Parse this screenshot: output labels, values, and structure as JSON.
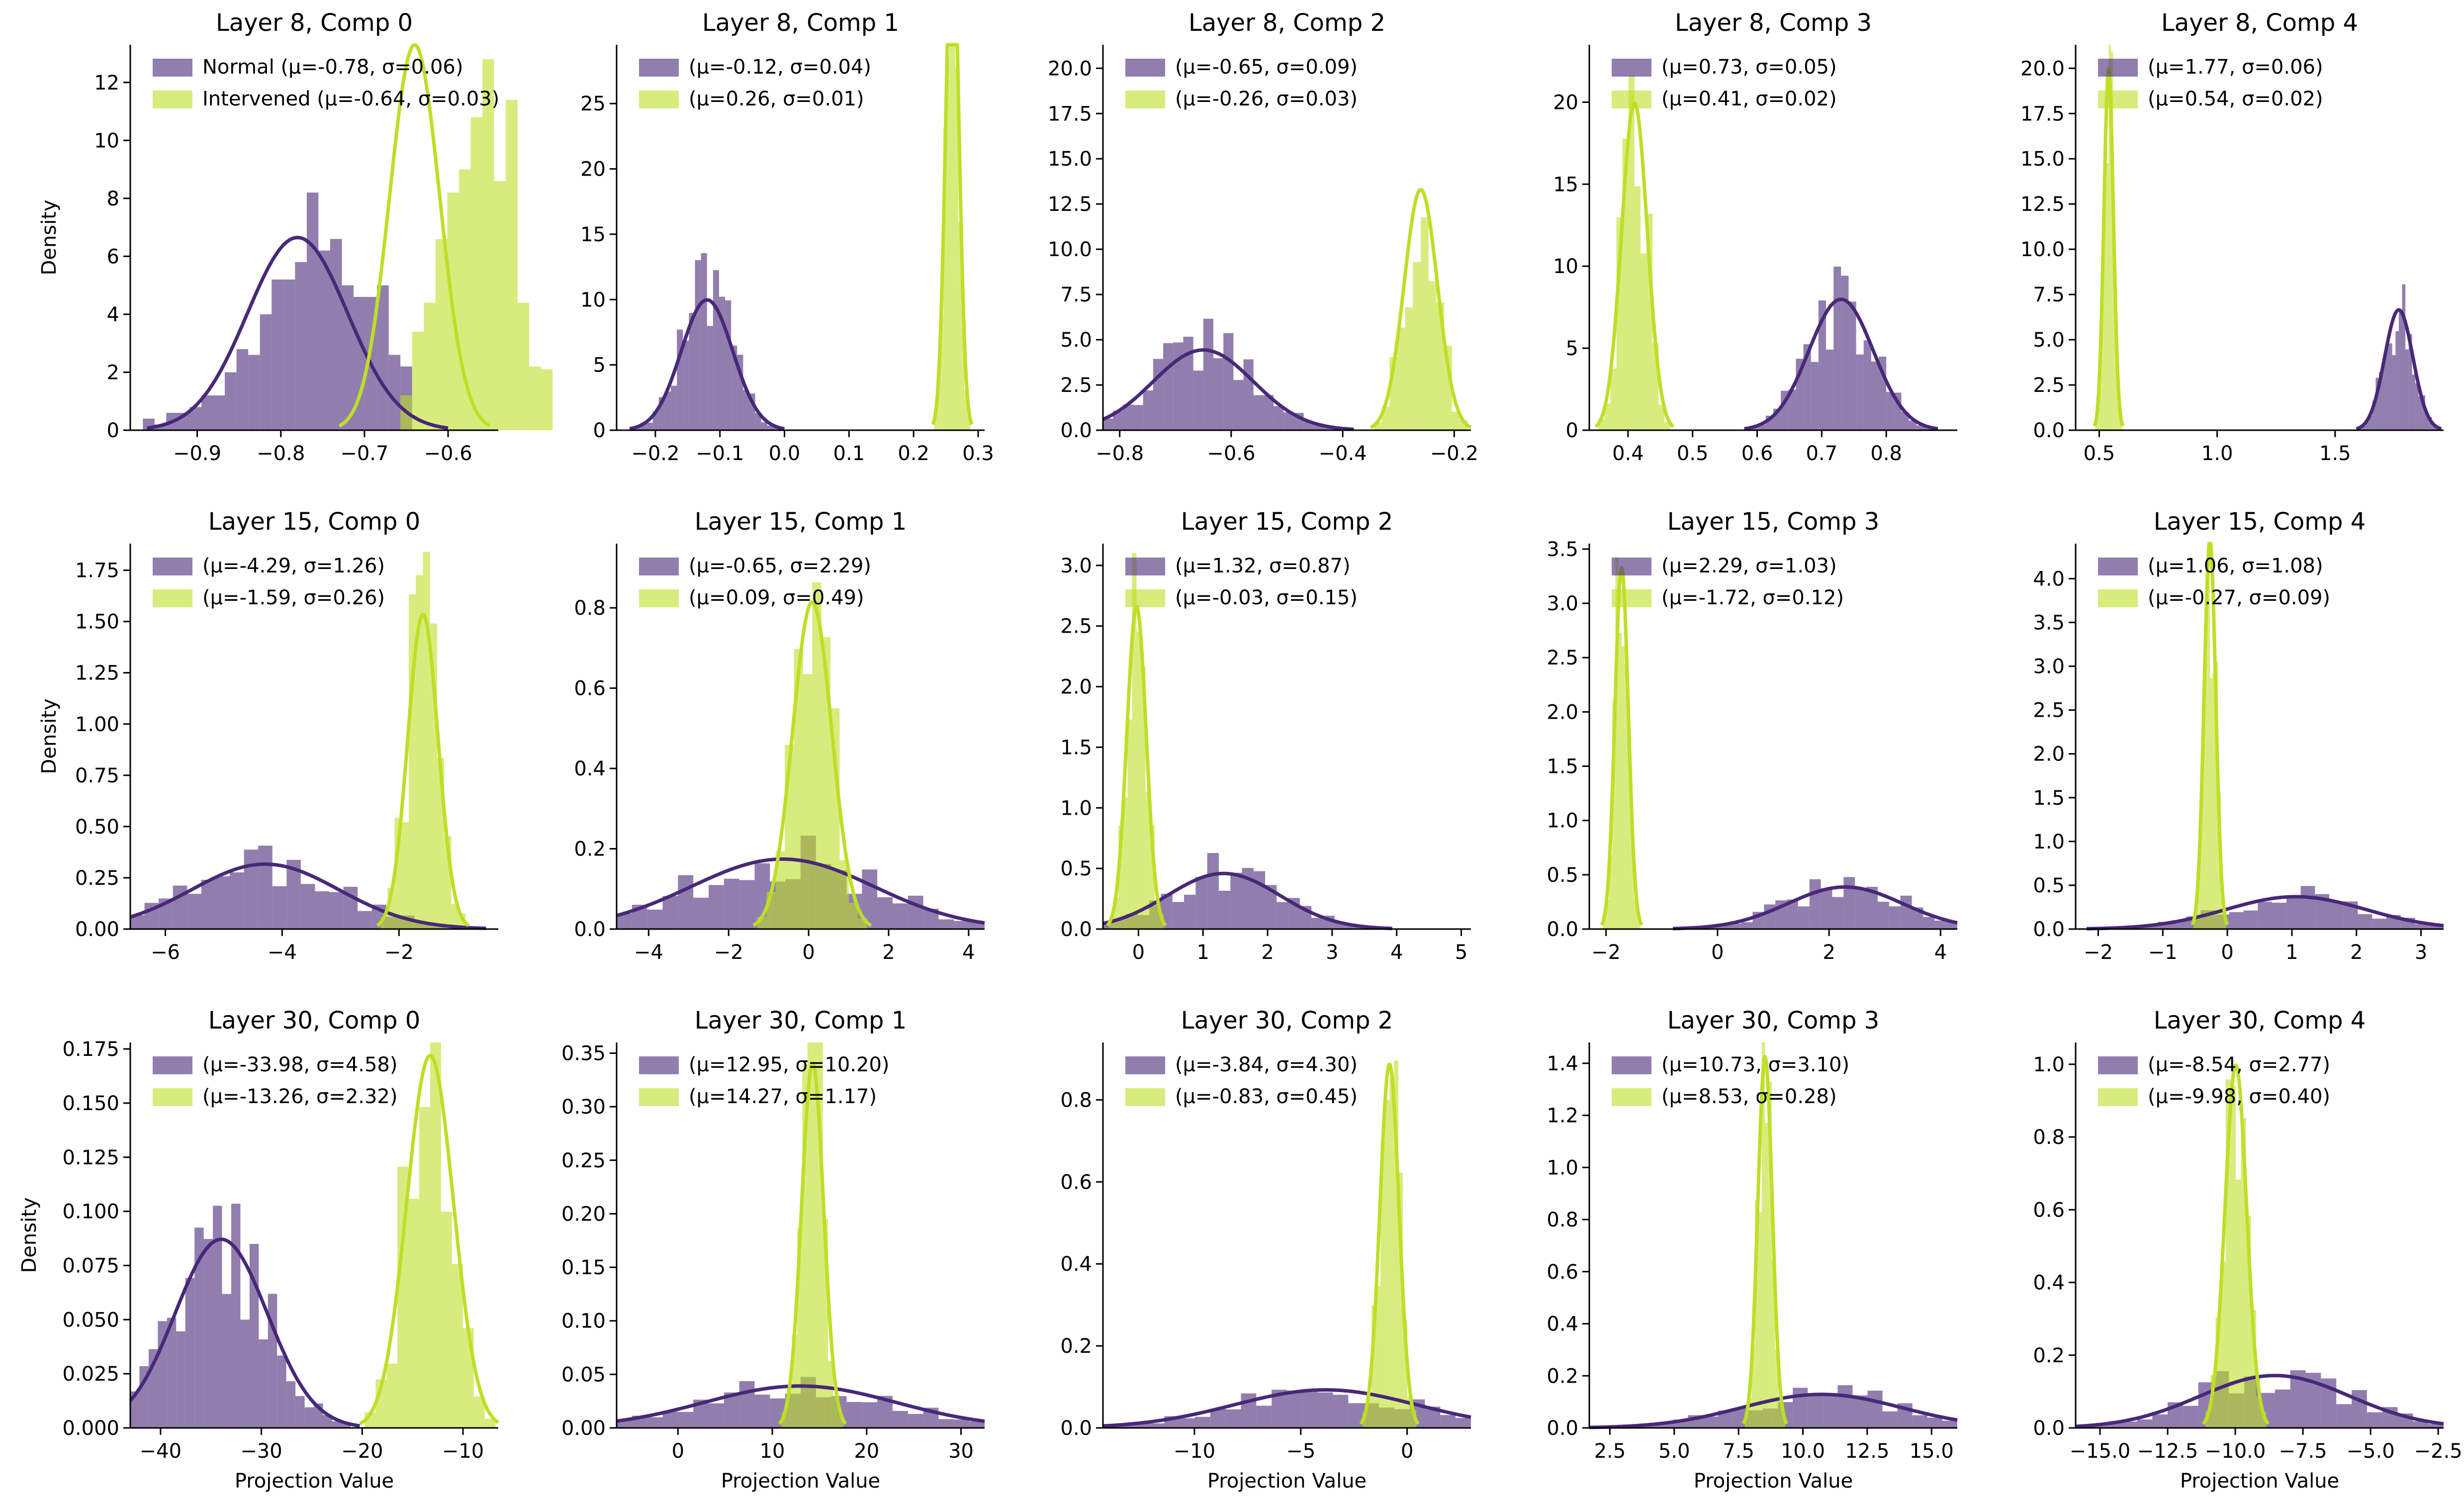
{
  "colors": {
    "normal": "#482878",
    "intervened": "#bddf26",
    "axis": "#000000"
  },
  "chart_data": [
    {
      "type": "histogram",
      "title": "Layer 8, Comp 0",
      "xlabel": "",
      "ylabel": "Density",
      "xlim": [
        -0.98,
        -0.54
      ],
      "xticks": [
        -0.9,
        -0.8,
        -0.7,
        -0.6
      ],
      "xtick_labels": [
        "−0.9",
        "−0.8",
        "−0.7",
        "−0.6"
      ],
      "ylim": [
        0,
        13.3
      ],
      "yticks": [
        0,
        2,
        4,
        6,
        8,
        10,
        12
      ],
      "ytick_labels": [
        "0",
        "2",
        "4",
        "6",
        "8",
        "10",
        "12"
      ],
      "bin_range": [
        -0.965,
        -0.545
      ],
      "series": [
        {
          "name": "Normal",
          "mean": -0.78,
          "std": 0.06,
          "legend": "Normal (μ=-0.78, σ=0.06)",
          "hist": [
            0.4,
            0.2,
            0.6,
            0.6,
            0.8,
            1.2,
            1.2,
            2.0,
            2.8,
            2.6,
            4.0,
            5.2,
            5.2,
            5.8,
            8.2,
            6.2,
            6.6,
            5.0,
            4.6,
            4.6,
            5.0,
            2.6,
            2.2,
            0,
            0,
            0,
            0,
            0,
            0,
            0
          ]
        },
        {
          "name": "Intervened",
          "mean": -0.64,
          "std": 0.03,
          "legend": "Intervened (μ=-0.64, σ=0.03)",
          "hist": [
            0,
            0,
            0,
            0,
            0,
            0,
            0,
            0,
            0,
            0,
            0,
            0,
            0,
            0,
            0,
            0,
            0,
            0,
            0,
            0,
            0,
            0,
            1.2,
            3.4,
            4.4,
            6.6,
            8.2,
            9.0,
            10.8,
            12.8,
            8.6,
            11.4,
            4.4,
            2.2,
            2.1
          ]
        }
      ]
    },
    {
      "type": "histogram",
      "title": "Layer 8, Comp 1",
      "xlabel": "",
      "ylabel": "",
      "xlim": [
        -0.26,
        0.31
      ],
      "xticks": [
        -0.2,
        -0.1,
        0.0,
        0.1,
        0.2,
        0.3
      ],
      "xtick_labels": [
        "−0.2",
        "−0.1",
        "0.0",
        "0.1",
        "0.2",
        "0.3"
      ],
      "ylim": [
        0,
        29.5
      ],
      "yticks": [
        0,
        5,
        10,
        15,
        20,
        25
      ],
      "ytick_labels": [
        "0",
        "5",
        "10",
        "15",
        "20",
        "25"
      ],
      "series": [
        {
          "name": "Normal",
          "mean": -0.12,
          "std": 0.04,
          "legend": "(μ=-0.12, σ=0.04)"
        },
        {
          "name": "Intervened",
          "mean": 0.26,
          "std": 0.01,
          "legend": "(μ=0.26, σ=0.01)"
        }
      ]
    },
    {
      "type": "histogram",
      "title": "Layer 8, Comp 2",
      "xlabel": "",
      "ylabel": "",
      "xlim": [
        -0.83,
        -0.17
      ],
      "xticks": [
        -0.8,
        -0.6,
        -0.4,
        -0.2
      ],
      "xtick_labels": [
        "−0.8",
        "−0.6",
        "−0.4",
        "−0.2"
      ],
      "ylim": [
        0,
        21.3
      ],
      "yticks": [
        0,
        2.5,
        5,
        7.5,
        10,
        12.5,
        15,
        17.5,
        20
      ],
      "ytick_labels": [
        "0.0",
        "2.5",
        "5.0",
        "7.5",
        "10.0",
        "12.5",
        "15.0",
        "17.5",
        "20.0"
      ],
      "series": [
        {
          "name": "Normal",
          "mean": -0.65,
          "std": 0.09,
          "legend": "(μ=-0.65, σ=0.09)"
        },
        {
          "name": "Intervened",
          "mean": -0.26,
          "std": 0.03,
          "legend": "(μ=-0.26, σ=0.03)"
        }
      ]
    },
    {
      "type": "histogram",
      "title": "Layer 8, Comp 3",
      "xlabel": "",
      "ylabel": "",
      "xlim": [
        0.34,
        0.91
      ],
      "xticks": [
        0.4,
        0.5,
        0.6,
        0.7,
        0.8
      ],
      "xtick_labels": [
        "0.4",
        "0.5",
        "0.6",
        "0.7",
        "0.8"
      ],
      "ylim": [
        0,
        23.5
      ],
      "yticks": [
        0,
        5,
        10,
        15,
        20
      ],
      "ytick_labels": [
        "0",
        "5",
        "10",
        "15",
        "20"
      ],
      "series": [
        {
          "name": "Normal",
          "mean": 0.73,
          "std": 0.05,
          "legend": "(μ=0.73, σ=0.05)"
        },
        {
          "name": "Intervened",
          "mean": 0.41,
          "std": 0.02,
          "legend": "(μ=0.41, σ=0.02)"
        }
      ]
    },
    {
      "type": "histogram",
      "title": "Layer 8, Comp 4",
      "xlabel": "",
      "ylabel": "",
      "xlim": [
        0.4,
        1.96
      ],
      "xticks": [
        0.5,
        1.0,
        1.5
      ],
      "xtick_labels": [
        "0.5",
        "1.0",
        "1.5"
      ],
      "ylim": [
        0,
        21.3
      ],
      "yticks": [
        0,
        2.5,
        5,
        7.5,
        10,
        12.5,
        15,
        17.5,
        20
      ],
      "ytick_labels": [
        "0.0",
        "2.5",
        "5.0",
        "7.5",
        "10.0",
        "12.5",
        "15.0",
        "17.5",
        "20.0"
      ],
      "series": [
        {
          "name": "Normal",
          "mean": 1.77,
          "std": 0.06,
          "legend": "(μ=1.77, σ=0.06)"
        },
        {
          "name": "Intervened",
          "mean": 0.54,
          "std": 0.02,
          "legend": "(μ=0.54, σ=0.02)"
        }
      ]
    },
    {
      "type": "histogram",
      "title": "Layer 15, Comp 0",
      "xlabel": "",
      "ylabel": "Density",
      "xlim": [
        -6.6,
        -0.3
      ],
      "xticks": [
        -6,
        -4,
        -2
      ],
      "xtick_labels": [
        "−6",
        "−4",
        "−2"
      ],
      "ylim": [
        0,
        1.88
      ],
      "yticks": [
        0,
        0.25,
        0.5,
        0.75,
        1.0,
        1.25,
        1.5,
        1.75
      ],
      "ytick_labels": [
        "0.00",
        "0.25",
        "0.50",
        "0.75",
        "1.00",
        "1.25",
        "1.50",
        "1.75"
      ],
      "series": [
        {
          "name": "Normal",
          "mean": -4.29,
          "std": 1.26,
          "legend": "(μ=-4.29, σ=1.26)"
        },
        {
          "name": "Intervened",
          "mean": -1.59,
          "std": 0.26,
          "legend": "(μ=-1.59, σ=0.26)"
        }
      ]
    },
    {
      "type": "histogram",
      "title": "Layer 15, Comp 1",
      "xlabel": "",
      "ylabel": "",
      "xlim": [
        -4.8,
        4.4
      ],
      "xticks": [
        -4,
        -2,
        0,
        2,
        4
      ],
      "xtick_labels": [
        "−4",
        "−2",
        "0",
        "2",
        "4"
      ],
      "ylim": [
        0,
        0.96
      ],
      "yticks": [
        0,
        0.2,
        0.4,
        0.6,
        0.8
      ],
      "ytick_labels": [
        "0.0",
        "0.2",
        "0.4",
        "0.6",
        "0.8"
      ],
      "series": [
        {
          "name": "Normal",
          "mean": -0.65,
          "std": 2.29,
          "legend": "(μ=-0.65, σ=2.29)"
        },
        {
          "name": "Intervened",
          "mean": 0.09,
          "std": 0.49,
          "legend": "(μ=0.09, σ=0.49)"
        }
      ]
    },
    {
      "type": "histogram",
      "title": "Layer 15, Comp 2",
      "xlabel": "",
      "ylabel": "",
      "xlim": [
        -0.55,
        5.15
      ],
      "xticks": [
        0,
        1,
        2,
        3,
        4,
        5
      ],
      "xtick_labels": [
        "0",
        "1",
        "2",
        "3",
        "4",
        "5"
      ],
      "ylim": [
        0,
        3.18
      ],
      "yticks": [
        0,
        0.5,
        1.0,
        1.5,
        2.0,
        2.5,
        3.0
      ],
      "ytick_labels": [
        "0.0",
        "0.5",
        "1.0",
        "1.5",
        "2.0",
        "2.5",
        "3.0"
      ],
      "series": [
        {
          "name": "Normal",
          "mean": 1.32,
          "std": 0.87,
          "legend": "(μ=1.32, σ=0.87)"
        },
        {
          "name": "Intervened",
          "mean": -0.03,
          "std": 0.15,
          "legend": "(μ=-0.03, σ=0.15)"
        }
      ]
    },
    {
      "type": "histogram",
      "title": "Layer 15, Comp 3",
      "xlabel": "",
      "ylabel": "",
      "xlim": [
        -2.3,
        4.3
      ],
      "xticks": [
        -2,
        0,
        2,
        4
      ],
      "xtick_labels": [
        "−2",
        "0",
        "2",
        "4"
      ],
      "ylim": [
        0,
        3.55
      ],
      "yticks": [
        0,
        0.5,
        1.0,
        1.5,
        2.0,
        2.5,
        3.0,
        3.5
      ],
      "ytick_labels": [
        "0.0",
        "0.5",
        "1.0",
        "1.5",
        "2.0",
        "2.5",
        "3.0",
        "3.5"
      ],
      "series": [
        {
          "name": "Normal",
          "mean": 2.29,
          "std": 1.03,
          "legend": "(μ=2.29, σ=1.03)"
        },
        {
          "name": "Intervened",
          "mean": -1.72,
          "std": 0.12,
          "legend": "(μ=-1.72, σ=0.12)"
        }
      ]
    },
    {
      "type": "histogram",
      "title": "Layer 15, Comp 4",
      "xlabel": "",
      "ylabel": "",
      "xlim": [
        -2.35,
        3.35
      ],
      "xticks": [
        -2,
        -1,
        0,
        1,
        2,
        3
      ],
      "xtick_labels": [
        "−2",
        "−1",
        "0",
        "1",
        "2",
        "3"
      ],
      "ylim": [
        0,
        4.4
      ],
      "yticks": [
        0,
        0.5,
        1.0,
        1.5,
        2.0,
        2.5,
        3.0,
        3.5,
        4.0
      ],
      "ytick_labels": [
        "0.0",
        "0.5",
        "1.0",
        "1.5",
        "2.0",
        "2.5",
        "3.0",
        "3.5",
        "4.0"
      ],
      "series": [
        {
          "name": "Normal",
          "mean": 1.06,
          "std": 1.08,
          "legend": "(μ=1.06, σ=1.08)"
        },
        {
          "name": "Intervened",
          "mean": -0.27,
          "std": 0.09,
          "legend": "(μ=-0.27, σ=0.09)"
        }
      ]
    },
    {
      "type": "histogram",
      "title": "Layer 30, Comp 0",
      "xlabel": "Projection Value",
      "ylabel": "Density",
      "xlim": [
        -43,
        -6.5
      ],
      "xticks": [
        -40,
        -30,
        -20,
        -10
      ],
      "xtick_labels": [
        "−40",
        "−30",
        "−20",
        "−10"
      ],
      "ylim": [
        0,
        0.178
      ],
      "yticks": [
        0,
        0.025,
        0.05,
        0.075,
        0.1,
        0.125,
        0.15,
        0.175
      ],
      "ytick_labels": [
        "0.000",
        "0.025",
        "0.050",
        "0.075",
        "0.100",
        "0.125",
        "0.150",
        "0.175"
      ],
      "series": [
        {
          "name": "Normal",
          "mean": -33.98,
          "std": 4.58,
          "legend": "(μ=-33.98, σ=4.58)"
        },
        {
          "name": "Intervened",
          "mean": -13.26,
          "std": 2.32,
          "legend": "(μ=-13.26, σ=2.32)"
        }
      ]
    },
    {
      "type": "histogram",
      "title": "Layer 30, Comp 1",
      "xlabel": "Projection Value",
      "ylabel": "",
      "xlim": [
        -6.5,
        32.5
      ],
      "xticks": [
        0,
        10,
        20,
        30
      ],
      "xtick_labels": [
        "0",
        "10",
        "20",
        "30"
      ],
      "ylim": [
        0,
        0.36
      ],
      "yticks": [
        0,
        0.05,
        0.1,
        0.15,
        0.2,
        0.25,
        0.3,
        0.35
      ],
      "ytick_labels": [
        "0.00",
        "0.05",
        "0.10",
        "0.15",
        "0.20",
        "0.25",
        "0.30",
        "0.35"
      ],
      "series": [
        {
          "name": "Normal",
          "mean": 12.95,
          "std": 10.2,
          "legend": "(μ=12.95, σ=10.20)"
        },
        {
          "name": "Intervened",
          "mean": 14.27,
          "std": 1.17,
          "legend": "(μ=14.27, σ=1.17)"
        }
      ]
    },
    {
      "type": "histogram",
      "title": "Layer 30, Comp 2",
      "xlabel": "Projection Value",
      "ylabel": "",
      "xlim": [
        -14.3,
        3.0
      ],
      "xticks": [
        -10,
        -5,
        0
      ],
      "xtick_labels": [
        "−10",
        "−5",
        "0"
      ],
      "ylim": [
        0,
        0.94
      ],
      "yticks": [
        0,
        0.2,
        0.4,
        0.6,
        0.8
      ],
      "ytick_labels": [
        "0.0",
        "0.2",
        "0.4",
        "0.6",
        "0.8"
      ],
      "series": [
        {
          "name": "Normal",
          "mean": -3.84,
          "std": 4.3,
          "legend": "(μ=-3.84, σ=4.30)"
        },
        {
          "name": "Intervened",
          "mean": -0.83,
          "std": 0.45,
          "legend": "(μ=-0.83, σ=0.45)"
        }
      ]
    },
    {
      "type": "histogram",
      "title": "Layer 30, Comp 3",
      "xlabel": "Projection Value",
      "ylabel": "",
      "xlim": [
        1.7,
        16.0
      ],
      "xticks": [
        2.5,
        5.0,
        7.5,
        10.0,
        12.5,
        15.0
      ],
      "xtick_labels": [
        "2.5",
        "5.0",
        "7.5",
        "10.0",
        "12.5",
        "15.0"
      ],
      "ylim": [
        0,
        1.48
      ],
      "yticks": [
        0,
        0.2,
        0.4,
        0.6,
        0.8,
        1.0,
        1.2,
        1.4
      ],
      "ytick_labels": [
        "0.0",
        "0.2",
        "0.4",
        "0.6",
        "0.8",
        "1.0",
        "1.2",
        "1.4"
      ],
      "series": [
        {
          "name": "Normal",
          "mean": 10.73,
          "std": 3.1,
          "legend": "(μ=10.73, σ=3.10)"
        },
        {
          "name": "Intervened",
          "mean": 8.53,
          "std": 0.28,
          "legend": "(μ=8.53, σ=0.28)"
        }
      ]
    },
    {
      "type": "histogram",
      "title": "Layer 30, Comp 4",
      "xlabel": "Projection Value",
      "ylabel": "",
      "xlim": [
        -15.9,
        -2.3
      ],
      "xticks": [
        -15,
        -12.5,
        -10,
        -7.5,
        -5,
        -2.5
      ],
      "xtick_labels": [
        "−15.0",
        "−12.5",
        "−10.0",
        "−7.5",
        "−5.0",
        "−2.5"
      ],
      "ylim": [
        0,
        1.06
      ],
      "yticks": [
        0,
        0.2,
        0.4,
        0.6,
        0.8,
        1.0
      ],
      "ytick_labels": [
        "0.0",
        "0.2",
        "0.4",
        "0.6",
        "0.8",
        "1.0"
      ],
      "series": [
        {
          "name": "Normal",
          "mean": -8.54,
          "std": 2.77,
          "legend": "(μ=-8.54, σ=2.77)"
        },
        {
          "name": "Intervened",
          "mean": -9.98,
          "std": 0.4,
          "legend": "(μ=-9.98, σ=0.40)"
        }
      ]
    }
  ]
}
